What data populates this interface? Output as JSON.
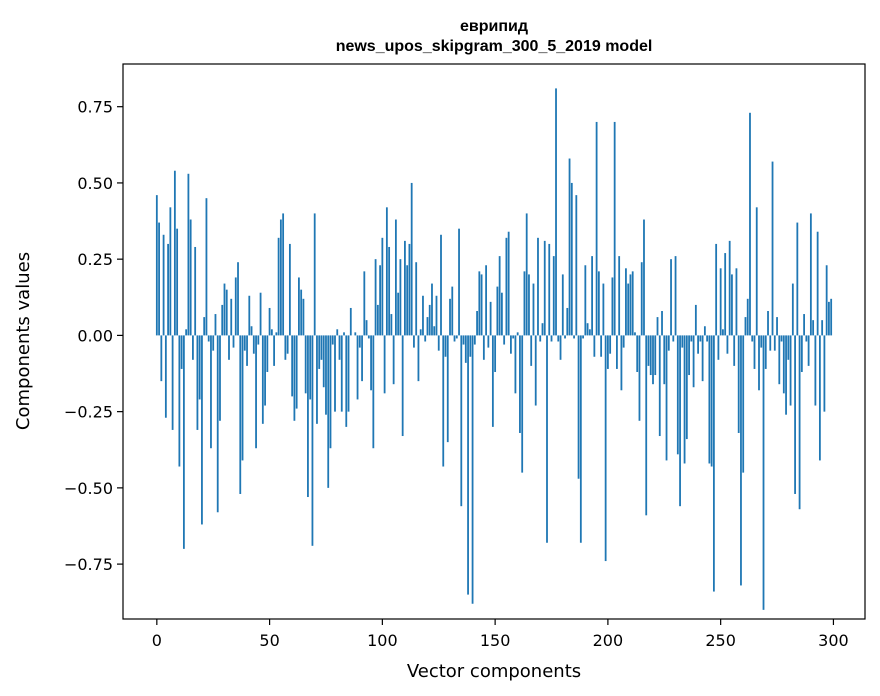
{
  "chart_data": {
    "type": "bar",
    "title_line1": "еврипид",
    "title_line2": "news_upos_skipgram_300_5_2019 model",
    "xlabel": "Vector components",
    "ylabel": "Components values",
    "xlim": [
      -15,
      314
    ],
    "ylim": [
      -0.93,
      0.89
    ],
    "x_ticks": [
      0,
      50,
      100,
      150,
      200,
      250,
      300
    ],
    "x_tick_labels": [
      "0",
      "50",
      "100",
      "150",
      "200",
      "250",
      "300"
    ],
    "y_ticks": [
      -0.75,
      -0.5,
      -0.25,
      0.0,
      0.25,
      0.5,
      0.75
    ],
    "y_tick_labels": [
      "−0.75",
      "−0.50",
      "−0.25",
      "0.00",
      "0.25",
      "0.50",
      "0.75"
    ],
    "bar_color": "#1f77b4",
    "values": [
      0.46,
      0.37,
      -0.15,
      0.33,
      -0.27,
      0.3,
      0.42,
      -0.31,
      0.54,
      0.35,
      -0.43,
      -0.11,
      -0.7,
      0.02,
      0.53,
      0.38,
      -0.08,
      0.29,
      -0.31,
      -0.21,
      -0.62,
      0.06,
      0.45,
      -0.02,
      -0.37,
      -0.05,
      0.07,
      -0.58,
      -0.28,
      0.1,
      0.17,
      0.15,
      -0.08,
      0.12,
      -0.04,
      0.19,
      0.24,
      -0.52,
      -0.41,
      -0.05,
      -0.1,
      0.13,
      0.03,
      -0.06,
      -0.37,
      -0.03,
      0.14,
      -0.29,
      -0.23,
      -0.12,
      0.09,
      0.02,
      -0.1,
      0.01,
      0.32,
      0.38,
      0.4,
      -0.08,
      -0.06,
      0.3,
      -0.2,
      -0.28,
      -0.24,
      0.19,
      0.15,
      0.12,
      -0.19,
      -0.53,
      -0.21,
      -0.69,
      0.4,
      -0.29,
      -0.11,
      -0.08,
      -0.17,
      -0.26,
      -0.5,
      -0.37,
      -0.03,
      -0.25,
      0.02,
      -0.08,
      -0.25,
      0.01,
      -0.3,
      -0.25,
      0.09,
      0.0,
      0.01,
      -0.21,
      -0.04,
      -0.15,
      0.21,
      0.05,
      -0.01,
      -0.18,
      -0.37,
      0.25,
      0.1,
      0.23,
      0.32,
      -0.19,
      0.42,
      0.29,
      0.07,
      -0.16,
      0.38,
      0.14,
      0.25,
      -0.33,
      0.31,
      0.23,
      0.3,
      0.5,
      -0.04,
      0.24,
      -0.15,
      0.02,
      0.13,
      -0.02,
      0.06,
      0.1,
      0.17,
      0.03,
      0.13,
      -0.05,
      0.33,
      -0.43,
      -0.07,
      -0.35,
      0.12,
      0.16,
      -0.02,
      -0.01,
      0.35,
      -0.56,
      -0.03,
      -0.09,
      -0.85,
      -0.07,
      -0.88,
      -0.03,
      0.08,
      0.21,
      0.2,
      -0.08,
      0.23,
      -0.04,
      0.11,
      -0.3,
      -0.12,
      0.16,
      0.26,
      0.14,
      -0.03,
      0.32,
      0.34,
      -0.06,
      -0.01,
      -0.19,
      0.01,
      -0.32,
      -0.45,
      0.21,
      0.4,
      0.2,
      -0.1,
      0.17,
      -0.23,
      0.32,
      -0.02,
      0.04,
      0.31,
      -0.68,
      0.3,
      -0.02,
      0.26,
      0.81,
      -0.02,
      -0.08,
      0.2,
      -0.01,
      0.09,
      0.58,
      0.5,
      -0.01,
      0.46,
      -0.47,
      -0.68,
      -0.01,
      0.23,
      0.04,
      0.02,
      0.26,
      -0.07,
      0.7,
      0.21,
      -0.07,
      0.17,
      -0.74,
      -0.11,
      -0.06,
      0.19,
      0.7,
      -0.11,
      0.26,
      -0.18,
      -0.04,
      0.22,
      0.17,
      0.2,
      0.21,
      0.01,
      -0.12,
      -0.28,
      0.24,
      0.38,
      -0.59,
      -0.1,
      -0.13,
      -0.16,
      -0.13,
      0.06,
      -0.33,
      0.08,
      -0.16,
      -0.41,
      -0.05,
      0.25,
      -0.02,
      0.26,
      -0.39,
      -0.56,
      -0.04,
      -0.42,
      -0.34,
      -0.13,
      -0.02,
      -0.17,
      0.1,
      -0.06,
      -0.02,
      -0.15,
      0.03,
      -0.02,
      -0.42,
      -0.43,
      -0.84,
      0.3,
      -0.08,
      0.22,
      0.02,
      0.27,
      -0.06,
      0.31,
      0.2,
      -0.1,
      0.22,
      -0.32,
      -0.82,
      -0.45,
      0.06,
      0.12,
      0.73,
      -0.02,
      -0.11,
      0.42,
      -0.18,
      -0.04,
      -0.9,
      -0.11,
      0.08,
      -0.05,
      0.57,
      -0.05,
      0.06,
      -0.16,
      -0.02,
      -0.19,
      -0.26,
      -0.08,
      -0.23,
      0.17,
      -0.52,
      0.37,
      -0.57,
      -0.12,
      0.07,
      -0.02,
      -0.1,
      0.4,
      0.05,
      -0.23,
      0.34,
      -0.41,
      0.05,
      -0.25,
      0.23,
      0.11,
      0.12
    ]
  }
}
